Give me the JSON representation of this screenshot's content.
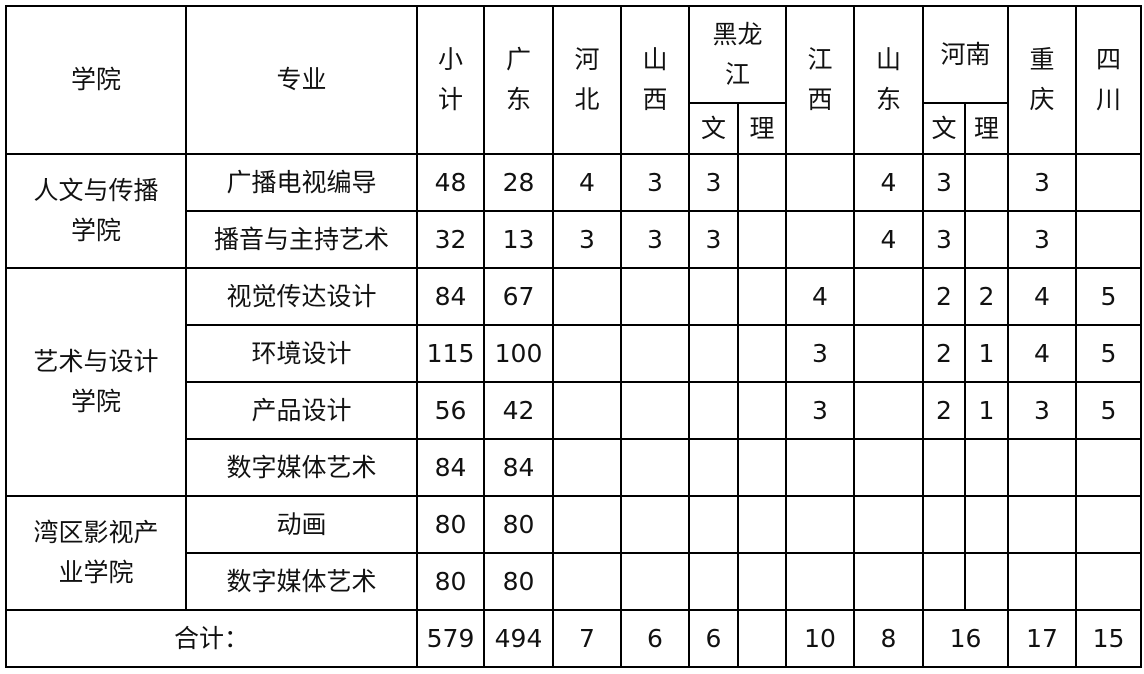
{
  "header": {
    "college": "学院",
    "major": "专业",
    "subtotal": "小\n计",
    "provinces": [
      {
        "name": "广\n东"
      },
      {
        "name": "河\n北"
      },
      {
        "name": "山\n西"
      },
      {
        "name": "黑龙\n江",
        "sub": [
          "文",
          "理"
        ]
      },
      {
        "name": "江\n西"
      },
      {
        "name": "山\n东"
      },
      {
        "name": "河南",
        "sub": [
          "文",
          "理"
        ]
      },
      {
        "name": "重\n庆"
      },
      {
        "name": "四\n川"
      }
    ]
  },
  "groups": [
    {
      "college": "人文与传播\n学院",
      "rows": [
        {
          "major": "广播电视编导",
          "cells": [
            "48",
            "28",
            "4",
            "3",
            "3",
            "",
            "",
            "4",
            "3",
            "",
            "3",
            ""
          ]
        },
        {
          "major": "播音与主持艺术",
          "cells": [
            "32",
            "13",
            "3",
            "3",
            "3",
            "",
            "",
            "4",
            "3",
            "",
            "3",
            ""
          ]
        }
      ]
    },
    {
      "college": "艺术与设计\n学院",
      "rows": [
        {
          "major": "视觉传达设计",
          "cells": [
            "84",
            "67",
            "",
            "",
            "",
            "",
            "4",
            "",
            "2",
            "2",
            "4",
            "5"
          ]
        },
        {
          "major": "环境设计",
          "cells": [
            "115",
            "100",
            "",
            "",
            "",
            "",
            "3",
            "",
            "2",
            "1",
            "4",
            "5"
          ]
        },
        {
          "major": "产品设计",
          "cells": [
            "56",
            "42",
            "",
            "",
            "",
            "",
            "3",
            "",
            "2",
            "1",
            "3",
            "5"
          ]
        },
        {
          "major": "数字媒体艺术",
          "cells": [
            "84",
            "84",
            "",
            "",
            "",
            "",
            "",
            "",
            "",
            "",
            "",
            ""
          ]
        }
      ]
    },
    {
      "college": "湾区影视产\n业学院",
      "rows": [
        {
          "major": "动画",
          "cells": [
            "80",
            "80",
            "",
            "",
            "",
            "",
            "",
            "",
            "",
            "",
            "",
            ""
          ]
        },
        {
          "major": "数字媒体艺术",
          "cells": [
            "80",
            "80",
            "",
            "",
            "",
            "",
            "",
            "",
            "",
            "",
            "",
            ""
          ]
        }
      ]
    }
  ],
  "total": {
    "label": "合计：",
    "cells": [
      "579",
      "494",
      "7",
      "6",
      "6",
      "",
      "10",
      "8",
      "16",
      "17",
      "15"
    ]
  }
}
